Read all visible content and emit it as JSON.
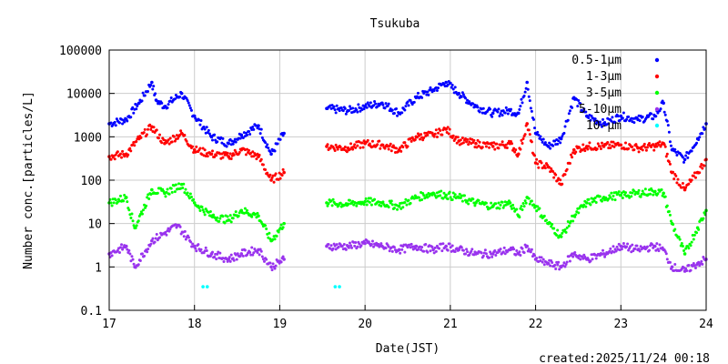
{
  "chart_data": {
    "type": "scatter",
    "title": "Tsukuba",
    "xlabel": "Date(JST)",
    "ylabel": "Number conc.[particles/L]",
    "yscale": "log",
    "xlim": [
      17,
      24
    ],
    "ylim": [
      0.1,
      100000
    ],
    "xticks": [
      "17",
      "18",
      "19",
      "20",
      "21",
      "22",
      "23",
      "24"
    ],
    "yticks": [
      "0.1",
      "1",
      "10",
      "100",
      "1000",
      "10000",
      "100000"
    ],
    "gap": [
      19.1,
      19.55
    ],
    "legend_position": "top-right",
    "created": "created:2025/11/24 00:18",
    "series": [
      {
        "name": "0.5-1μm",
        "color": "#0000ff",
        "marker": "•",
        "x": [
          17.0,
          17.2,
          17.35,
          17.5,
          17.55,
          17.65,
          17.85,
          18.0,
          18.2,
          18.4,
          18.55,
          18.75,
          18.9,
          19.05,
          19.55,
          19.8,
          20.0,
          20.2,
          20.4,
          20.6,
          20.8,
          20.95,
          21.1,
          21.3,
          21.5,
          21.7,
          21.8,
          21.9,
          22.0,
          22.15,
          22.3,
          22.45,
          22.6,
          22.8,
          23.0,
          23.2,
          23.4,
          23.5,
          23.6,
          23.75,
          23.9,
          24.0
        ],
        "y": [
          2000,
          2500,
          6000,
          18000,
          7000,
          5000,
          10000,
          3000,
          1000,
          700,
          1100,
          1800,
          400,
          1200,
          4500,
          4000,
          5000,
          6000,
          3500,
          8000,
          12000,
          18000,
          10000,
          5000,
          3500,
          4000,
          3500,
          18000,
          1200,
          600,
          900,
          8000,
          3000,
          2000,
          3000,
          2500,
          3000,
          6000,
          500,
          300,
          900,
          2000
        ]
      },
      {
        "name": "1-3μm",
        "color": "#ff0000",
        "marker": "•",
        "x": [
          17.0,
          17.2,
          17.35,
          17.5,
          17.65,
          17.85,
          18.0,
          18.2,
          18.4,
          18.55,
          18.75,
          18.9,
          19.05,
          19.55,
          19.8,
          20.0,
          20.2,
          20.4,
          20.6,
          20.8,
          20.95,
          21.1,
          21.3,
          21.5,
          21.7,
          21.8,
          21.9,
          22.0,
          22.15,
          22.3,
          22.45,
          22.6,
          22.8,
          23.0,
          23.2,
          23.4,
          23.5,
          23.6,
          23.75,
          23.9,
          24.0
        ],
        "y": [
          350,
          400,
          900,
          1700,
          700,
          1200,
          500,
          400,
          350,
          500,
          350,
          100,
          150,
          600,
          550,
          700,
          650,
          500,
          1000,
          1100,
          1500,
          800,
          700,
          600,
          700,
          400,
          2000,
          250,
          200,
          80,
          500,
          600,
          600,
          650,
          550,
          600,
          700,
          150,
          60,
          150,
          300
        ]
      },
      {
        "name": "3-5μm",
        "color": "#00ff00",
        "marker": "•",
        "x": [
          17.0,
          17.2,
          17.3,
          17.5,
          17.65,
          17.85,
          18.0,
          18.2,
          18.4,
          18.55,
          18.75,
          18.9,
          19.05,
          19.55,
          19.8,
          20.0,
          20.2,
          20.4,
          20.6,
          20.8,
          20.95,
          21.1,
          21.3,
          21.5,
          21.7,
          21.8,
          21.9,
          22.0,
          22.15,
          22.3,
          22.45,
          22.6,
          22.8,
          23.0,
          23.2,
          23.4,
          23.5,
          23.6,
          23.75,
          23.9,
          24.0
        ],
        "y": [
          30,
          40,
          8,
          60,
          50,
          80,
          30,
          15,
          12,
          20,
          15,
          4,
          10,
          30,
          28,
          32,
          30,
          25,
          40,
          50,
          45,
          40,
          30,
          25,
          30,
          15,
          40,
          25,
          10,
          5,
          15,
          30,
          40,
          45,
          50,
          55,
          50,
          10,
          2,
          8,
          20
        ]
      },
      {
        "name": "5-10μm",
        "color": "#9933ee",
        "marker": "•",
        "x": [
          17.0,
          17.2,
          17.3,
          17.5,
          17.65,
          17.8,
          18.0,
          18.2,
          18.4,
          18.55,
          18.75,
          18.9,
          19.05,
          19.55,
          19.8,
          20.0,
          20.2,
          20.4,
          20.6,
          20.8,
          20.95,
          21.1,
          21.3,
          21.5,
          21.7,
          21.8,
          21.9,
          22.0,
          22.15,
          22.3,
          22.45,
          22.6,
          22.8,
          23.0,
          23.2,
          23.4,
          23.5,
          23.6,
          23.75,
          23.9,
          24.0
        ],
        "y": [
          2,
          3,
          1,
          4,
          6,
          9,
          3,
          2,
          1.5,
          2,
          2.5,
          1,
          1.5,
          3,
          3,
          3.5,
          3,
          2.5,
          3,
          2.5,
          3,
          2.5,
          2,
          2,
          2.5,
          2,
          3,
          1.5,
          1.2,
          1,
          2,
          1.5,
          2,
          3,
          2.5,
          3,
          2.5,
          1,
          0.8,
          1.2,
          1.5
        ]
      },
      {
        "name": "10-μm",
        "color": "#00ffff",
        "marker": "•",
        "x": [
          18.1,
          18.15,
          19.65,
          19.7
        ],
        "y": [
          0.35,
          0.35,
          0.35,
          0.35
        ]
      }
    ]
  }
}
